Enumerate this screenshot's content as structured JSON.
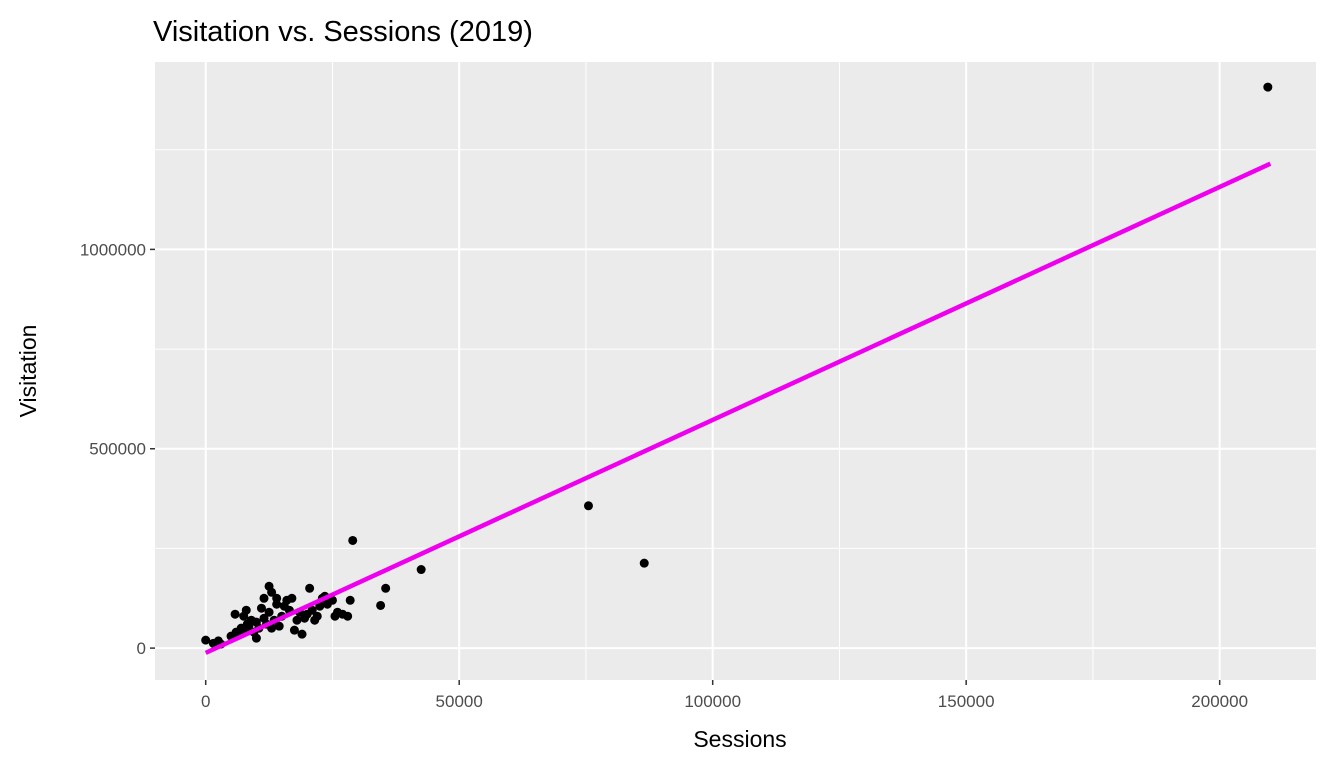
{
  "chart_data": {
    "type": "scatter",
    "title": "Visitation vs. Sessions (2019)",
    "xlabel": "Sessions",
    "ylabel": "Visitation",
    "xlim": [
      -10000,
      219000
    ],
    "ylim": [
      -80000,
      1470000
    ],
    "x_ticks": [
      0,
      50000,
      100000,
      150000,
      200000
    ],
    "x_tick_labels": [
      "0",
      "50000",
      "100000",
      "150000",
      "200000"
    ],
    "y_ticks": [
      0,
      500000,
      1000000
    ],
    "y_tick_labels": [
      "0",
      "500000",
      "1000000"
    ],
    "grid": true,
    "background": "#ebebeb",
    "point_color": "#000000",
    "trend_color": "#ee00ee",
    "trend_line": {
      "x": [
        0,
        210000
      ],
      "y": [
        -12000,
        1215000
      ]
    },
    "points": [
      {
        "x": 0,
        "y": 20000
      },
      {
        "x": 1500,
        "y": 12000
      },
      {
        "x": 2500,
        "y": 18000
      },
      {
        "x": 3000,
        "y": 10000
      },
      {
        "x": 5000,
        "y": 30000
      },
      {
        "x": 5800,
        "y": 85000
      },
      {
        "x": 6000,
        "y": 40000
      },
      {
        "x": 6500,
        "y": 35000
      },
      {
        "x": 7000,
        "y": 50000
      },
      {
        "x": 7500,
        "y": 80000
      },
      {
        "x": 7800,
        "y": 45000
      },
      {
        "x": 8000,
        "y": 95000
      },
      {
        "x": 8200,
        "y": 60000
      },
      {
        "x": 8500,
        "y": 55000
      },
      {
        "x": 9000,
        "y": 70000
      },
      {
        "x": 9500,
        "y": 40000
      },
      {
        "x": 10000,
        "y": 25000
      },
      {
        "x": 10000,
        "y": 65000
      },
      {
        "x": 10500,
        "y": 50000
      },
      {
        "x": 11000,
        "y": 100000
      },
      {
        "x": 11500,
        "y": 75000
      },
      {
        "x": 11500,
        "y": 125000
      },
      {
        "x": 12000,
        "y": 60000
      },
      {
        "x": 12500,
        "y": 90000
      },
      {
        "x": 12500,
        "y": 155000
      },
      {
        "x": 13000,
        "y": 140000
      },
      {
        "x": 13000,
        "y": 50000
      },
      {
        "x": 13500,
        "y": 70000
      },
      {
        "x": 14000,
        "y": 110000
      },
      {
        "x": 14000,
        "y": 125000
      },
      {
        "x": 14500,
        "y": 55000
      },
      {
        "x": 15000,
        "y": 80000
      },
      {
        "x": 15500,
        "y": 105000
      },
      {
        "x": 16000,
        "y": 120000
      },
      {
        "x": 16500,
        "y": 95000
      },
      {
        "x": 17000,
        "y": 125000
      },
      {
        "x": 17500,
        "y": 45000
      },
      {
        "x": 18000,
        "y": 70000
      },
      {
        "x": 18500,
        "y": 90000
      },
      {
        "x": 19000,
        "y": 35000
      },
      {
        "x": 19500,
        "y": 75000
      },
      {
        "x": 20000,
        "y": 85000
      },
      {
        "x": 20500,
        "y": 150000
      },
      {
        "x": 21000,
        "y": 95000
      },
      {
        "x": 21500,
        "y": 70000
      },
      {
        "x": 22000,
        "y": 80000
      },
      {
        "x": 22500,
        "y": 105000
      },
      {
        "x": 23000,
        "y": 125000
      },
      {
        "x": 23500,
        "y": 130000
      },
      {
        "x": 24000,
        "y": 110000
      },
      {
        "x": 25000,
        "y": 120000
      },
      {
        "x": 25500,
        "y": 80000
      },
      {
        "x": 26000,
        "y": 90000
      },
      {
        "x": 27000,
        "y": 85000
      },
      {
        "x": 28000,
        "y": 80000
      },
      {
        "x": 28500,
        "y": 120000
      },
      {
        "x": 29000,
        "y": 270000
      },
      {
        "x": 34500,
        "y": 107000
      },
      {
        "x": 35500,
        "y": 150000
      },
      {
        "x": 42500,
        "y": 197000
      },
      {
        "x": 75500,
        "y": 357000
      },
      {
        "x": 86500,
        "y": 213000
      },
      {
        "x": 209500,
        "y": 1407000
      }
    ]
  }
}
